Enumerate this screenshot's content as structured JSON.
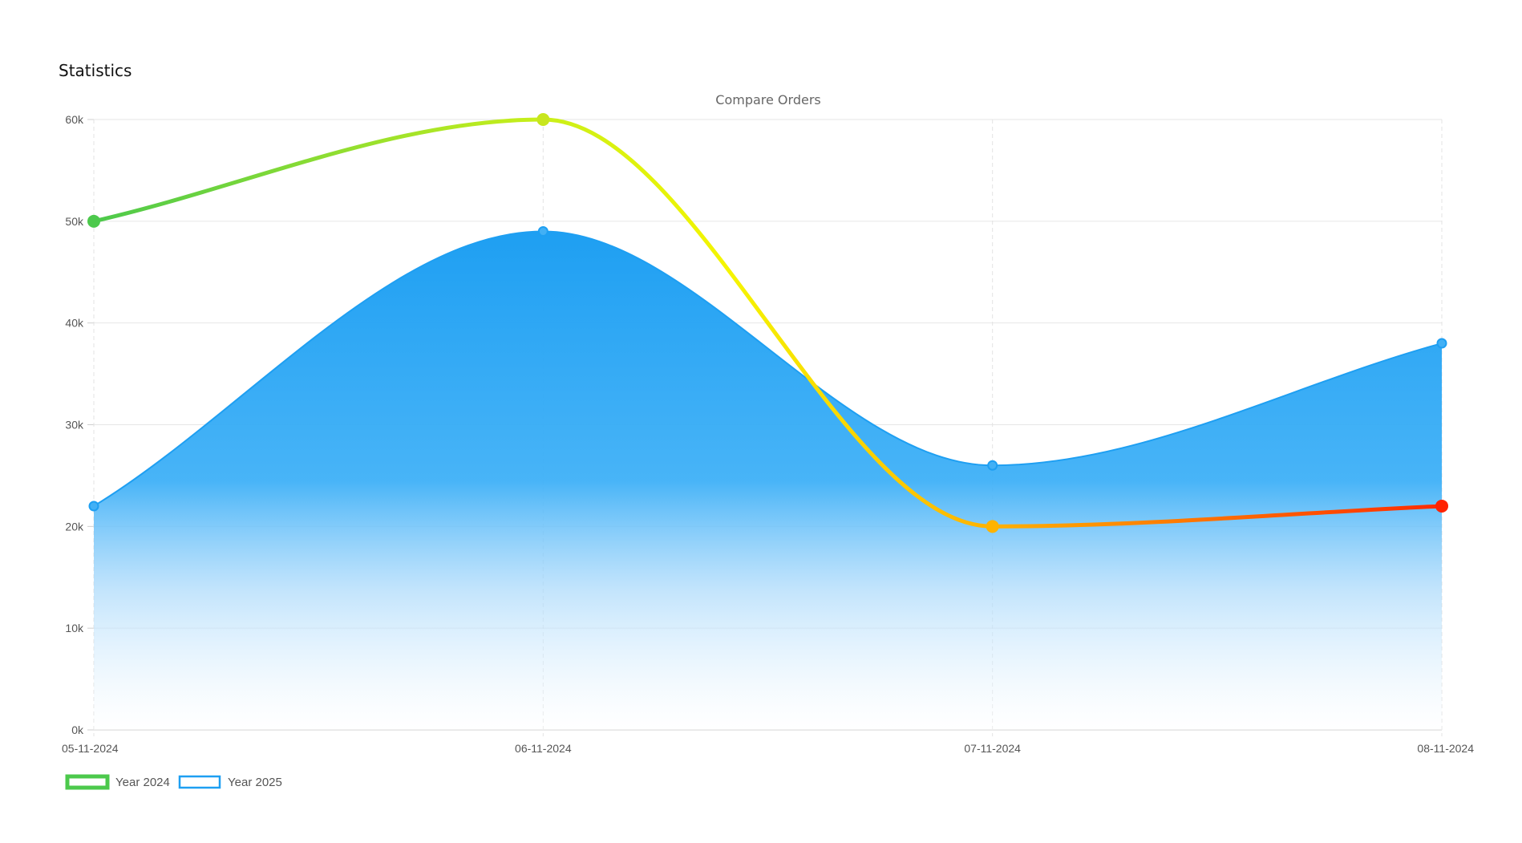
{
  "page": {
    "title": "Statistics"
  },
  "chart_data": {
    "type": "line",
    "title": "Compare Orders",
    "categories": [
      "05-11-2024",
      "06-11-2024",
      "07-11-2024",
      "08-11-2024"
    ],
    "ylim": [
      0,
      60000
    ],
    "yticks": [
      0,
      10000,
      20000,
      30000,
      40000,
      50000,
      60000
    ],
    "ytick_labels": [
      "0k",
      "10k",
      "20k",
      "30k",
      "40k",
      "50k",
      "60k"
    ],
    "grid": true,
    "legend_position": "bottom-left",
    "series": [
      {
        "name": "Year 2024",
        "values": [
          50000,
          60000,
          20000,
          22000
        ],
        "style": "line",
        "gradient_colors": [
          "#4cc94c",
          "#c8ef1a",
          "#f5f500",
          "#ffb000",
          "#ff2a00"
        ],
        "point_colors": [
          "#4cc94c",
          "#c8e61e",
          "#ffb300",
          "#ff2200"
        ]
      },
      {
        "name": "Year 2025",
        "values": [
          22000,
          49000,
          26000,
          38000
        ],
        "style": "area",
        "color": "#1e9ff2"
      }
    ],
    "legend": [
      {
        "label": "Year 2024",
        "color": "#4cc94c"
      },
      {
        "label": "Year 2025",
        "color": "#1e9ff2"
      }
    ]
  }
}
